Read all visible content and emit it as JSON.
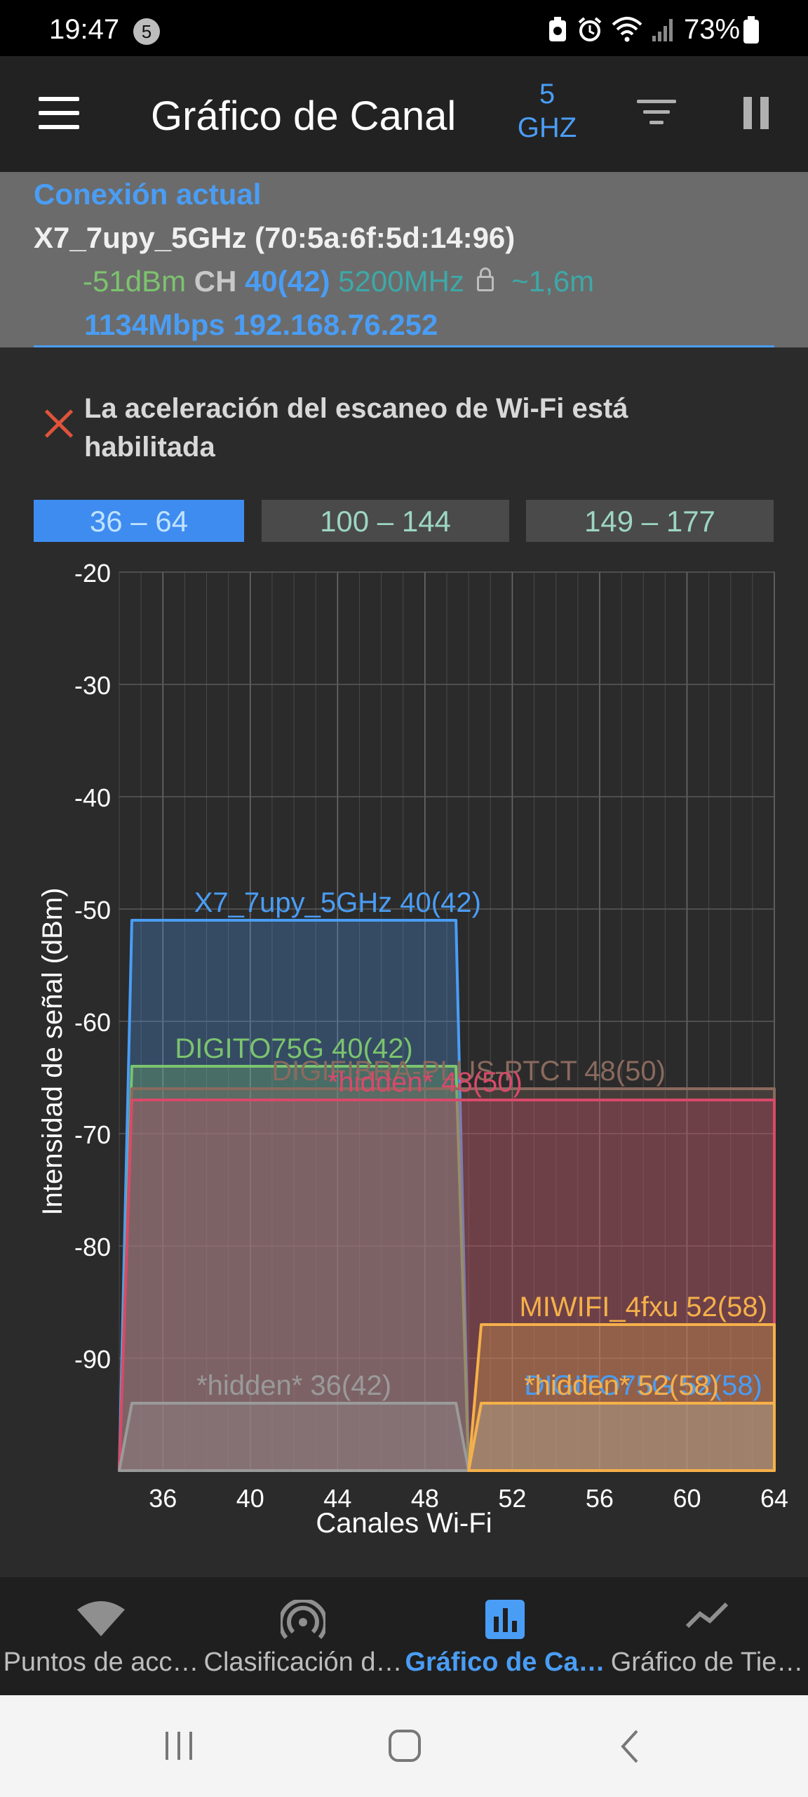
{
  "status_bar": {
    "time": "19:47",
    "notification_count": "5",
    "battery": "73%"
  },
  "app_bar": {
    "title": "Gráfico de Canal",
    "band_top": "5",
    "band_bottom": "GHZ"
  },
  "connection": {
    "header": "Conexión actual",
    "ssid_line": "X7_7upy_5GHz (70:5a:6f:5d:14:96)",
    "signal": "-51dBm",
    "ch_label": "CH",
    "channel": "40(42)",
    "frequency": "5200MHz",
    "distance": "~1,6m",
    "speed_ip": "1134Mbps 192.168.76.252"
  },
  "warning": {
    "text": "La aceleración del escaneo de Wi-Fi está habilitada"
  },
  "ranges": [
    {
      "label": "36 – 64",
      "active": true
    },
    {
      "label": "100 – 144",
      "active": false
    },
    {
      "label": "149 – 177",
      "active": false
    }
  ],
  "chart_data": {
    "type": "area",
    "ylabel": "Intensidad de señal (dBm)",
    "xlabel": "Canales Wi-Fi",
    "x_ticks": [
      36,
      40,
      44,
      48,
      52,
      56,
      60,
      64
    ],
    "y_ticks": [
      -20,
      -30,
      -40,
      -50,
      -60,
      -70,
      -80,
      -90
    ],
    "xlim": [
      34,
      64
    ],
    "ylim": [
      -100,
      -20
    ],
    "networks": [
      {
        "name": "X7_7upy_5GHz 40(42)",
        "color": "#4a9df5",
        "x_start": 34,
        "x_end": 50,
        "level": -51,
        "label_x": 44
      },
      {
        "name": "DIGITO75G 40(42)",
        "color": "#7cc36e",
        "x_start": 34,
        "x_end": 50,
        "level": -64,
        "label_x": 42
      },
      {
        "name": "DIGIFIBRA-PLUS-PTCT 48(50)",
        "color": "#8a6a5e",
        "x_start": 34,
        "x_end": 66,
        "level": -66,
        "label_x": 50
      },
      {
        "name": "*hidden* 48(50)",
        "color": "#d9496a",
        "x_start": 34,
        "x_end": 66,
        "level": -67,
        "label_x": 48
      },
      {
        "name": "*hidden* 36(42)",
        "color": "#9a9a9a",
        "x_start": 34,
        "x_end": 50,
        "level": -94,
        "label_x": 42
      },
      {
        "name": "MIWIFI_4fxu 52(58)",
        "color": "#f5b04a",
        "x_start": 50,
        "x_end": 66,
        "level": -87,
        "label_x": 58
      },
      {
        "name": "DIGITO75G 52(58)",
        "color": "#4a9df5",
        "x_start": 50,
        "x_end": 66,
        "level": -94,
        "label_x": 58
      },
      {
        "name": "*hidden* 52(58)",
        "color": "#f5b04a",
        "x_start": 50,
        "x_end": 66,
        "level": -94,
        "label_x": 57
      }
    ]
  },
  "bottom_nav": [
    {
      "label": "Puntos de acc…",
      "icon": "wifi-icon",
      "active": false
    },
    {
      "label": "Clasificación d…",
      "icon": "signal-rating-icon",
      "active": false
    },
    {
      "label": "Gráfico de Ca…",
      "icon": "bar-chart-icon",
      "active": true
    },
    {
      "label": "Gráfico de Tie…",
      "icon": "line-chart-icon",
      "active": false
    }
  ],
  "colors": {
    "accent": "#4a9df5",
    "background": "#2b2b2b",
    "connection_panel": "#6b6b6b"
  }
}
